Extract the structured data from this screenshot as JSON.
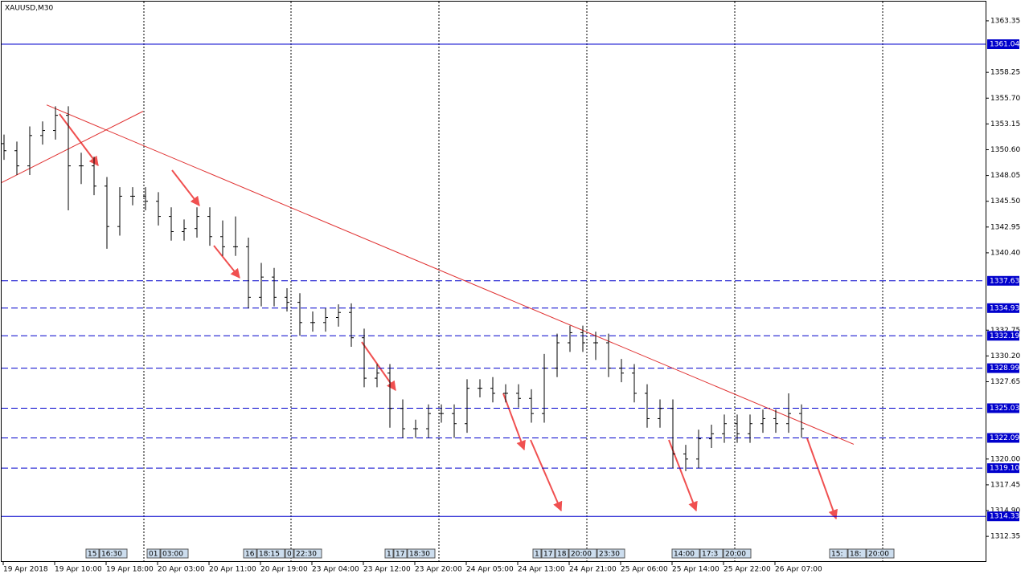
{
  "chart_data": {
    "type": "ohlc",
    "title": "XAUUSD,M30",
    "ylim": [
      1309.82,
      1365.25
    ],
    "yticks": [
      {
        "value": 1363.35,
        "label": "1363.35"
      },
      {
        "value": 1358.25,
        "label": "1358.25"
      },
      {
        "value": 1355.7,
        "label": "1355.70"
      },
      {
        "value": 1353.15,
        "label": "1353.15"
      },
      {
        "value": 1350.6,
        "label": "1350.60"
      },
      {
        "value": 1348.05,
        "label": "1348.05"
      },
      {
        "value": 1345.5,
        "label": "1345.50"
      },
      {
        "value": 1342.95,
        "label": "1342.95"
      },
      {
        "value": 1340.4,
        "label": "1340.40"
      },
      {
        "value": 1332.75,
        "label": "1332.75"
      },
      {
        "value": 1330.2,
        "label": "1330.20"
      },
      {
        "value": 1327.65,
        "label": "1327.65"
      },
      {
        "value": 1320,
        "label": "1320.00"
      },
      {
        "value": 1317.45,
        "label": "1317.45"
      },
      {
        "value": 1314.9,
        "label": "1314.90"
      },
      {
        "value": 1312.35,
        "label": "1312.35"
      }
    ],
    "x_labels": [
      "19 Apr 2018",
      "19 Apr 10:00",
      "19 Apr 18:00",
      "20 Apr 03:00",
      "20 Apr 11:00",
      "20 Apr 19:00",
      "23 Apr 04:00",
      "23 Apr 12:00",
      "23 Apr 20:00",
      "24 Apr 05:00",
      "24 Apr 13:00",
      "24 Apr 21:00",
      "25 Apr 06:00",
      "25 Apr 14:00",
      "25 Apr 22:00",
      "26 Apr 07:00"
    ],
    "color": "#000000",
    "open": [
      1351.2,
      1350.5,
      1349,
      1352,
      1352.5,
      1354,
      1349,
      1349,
      1347,
      1343,
      1346,
      1346,
      1345.5,
      1344,
      1342.5,
      1342.8,
      1344,
      1342,
      1341,
      1341,
      1336,
      1338,
      1336,
      1335.5,
      1333.5,
      1333.5,
      1334,
      1334.5,
      1332,
      1328,
      1328.5,
      1325,
      1323,
      1323,
      1324.5,
      1324.5,
      1323.5,
      1327,
      1327,
      1326.5,
      1326.5,
      1326,
      1324.5,
      1329,
      1331.5,
      1332.5,
      1331.5,
      1331.5,
      1329,
      1328.5,
      1326.5,
      1324,
      1325,
      1320.5,
      1320,
      1322,
      1322.5,
      1323.5,
      1322.5,
      1323.5,
      1324,
      1323.5,
      1324.5
    ],
    "high": [
      1352.1,
      1351.4,
      1352.9,
      1353.4,
      1354.9,
      1354.9,
      1350.3,
      1349.9,
      1347.9,
      1346.9,
      1346.9,
      1346.9,
      1346.4,
      1344.9,
      1343.7,
      1344.9,
      1344.9,
      1343.6,
      1344,
      1341.9,
      1339.4,
      1338.9,
      1336.9,
      1336.4,
      1334.6,
      1334.9,
      1335.3,
      1335.4,
      1332.9,
      1329.4,
      1329.4,
      1325.9,
      1323.9,
      1325.4,
      1325.4,
      1325.4,
      1327.9,
      1327.9,
      1328.1,
      1327.4,
      1327.4,
      1326.9,
      1330.4,
      1332.4,
      1333.2,
      1333.2,
      1332.6,
      1332.4,
      1329.9,
      1329.4,
      1327.4,
      1325.9,
      1325.9,
      1321.4,
      1322.9,
      1323.4,
      1324.4,
      1324.4,
      1324.4,
      1324.9,
      1324.9,
      1326.5,
      1325.4
    ],
    "low": [
      1349.6,
      1348.1,
      1348.1,
      1351.1,
      1351.6,
      1344.6,
      1347.2,
      1346.1,
      1340.8,
      1342.1,
      1345.1,
      1344.6,
      1343.1,
      1341.6,
      1341.6,
      1341.9,
      1341.1,
      1340.1,
      1340.1,
      1334.9,
      1335.1,
      1335.1,
      1334.6,
      1332.2,
      1332.6,
      1332.6,
      1333.1,
      1331.1,
      1327.1,
      1327.1,
      1323.1,
      1322.1,
      1322.1,
      1322.1,
      1323.6,
      1322.1,
      1322.6,
      1326.1,
      1325.6,
      1325.6,
      1325.1,
      1323.6,
      1323.6,
      1328.1,
      1330.6,
      1330.6,
      1329.8,
      1328.1,
      1327.6,
      1325.6,
      1323.1,
      1323.1,
      1319.1,
      1318.8,
      1319.1,
      1321.1,
      1321.6,
      1321.6,
      1321.6,
      1322.6,
      1322.6,
      1322.6,
      1322.1
    ],
    "close": [
      1350.5,
      1349,
      1352,
      1352.5,
      1354,
      1349,
      1349,
      1347,
      1343,
      1346,
      1346,
      1345.5,
      1344,
      1342.5,
      1342.8,
      1344,
      1342,
      1341,
      1341,
      1336,
      1338,
      1336,
      1335.5,
      1333.5,
      1333.5,
      1334,
      1334.5,
      1332,
      1328,
      1328.5,
      1325,
      1323,
      1323,
      1324.5,
      1324.5,
      1323.5,
      1327,
      1327,
      1326.5,
      1326.5,
      1326,
      1324.5,
      1329,
      1331.5,
      1332.5,
      1331.5,
      1331.5,
      1329,
      1328.5,
      1326.5,
      1324,
      1325,
      1320.5,
      1320,
      1322,
      1322.5,
      1323.5,
      1322.5,
      1323.5,
      1324,
      1323.5,
      1324.5,
      1323
    ],
    "levels": [
      {
        "value": 1361.04,
        "label": "1361.04",
        "style": "solid"
      },
      {
        "value": 1337.63,
        "label": "1337.63",
        "style": "dashed"
      },
      {
        "value": 1334.93,
        "label": "1334.93",
        "style": "dashed"
      },
      {
        "value": 1332.19,
        "label": "1332.19",
        "style": "dashed"
      },
      {
        "value": 1328.99,
        "label": "1328.99",
        "style": "dashed"
      },
      {
        "value": 1325.03,
        "label": "1325.03",
        "style": "dashed"
      },
      {
        "value": 1322.09,
        "label": "1322.09",
        "style": "dashed"
      },
      {
        "value": 1319.1,
        "label": "1319.10",
        "style": "dashed"
      },
      {
        "value": 1314.33,
        "label": "1314.33",
        "style": "solid"
      }
    ],
    "level_color": "#0000cc",
    "trendlines": [
      {
        "from": 1355.03,
        "to": 1321.46
      },
      {
        "from": 1347.35,
        "to": 1354.4
      }
    ],
    "trend_color": "#e03030",
    "events": [
      [
        "15",
        "16:30"
      ],
      [
        "01",
        "03:00"
      ],
      [
        "16",
        "18:15",
        "0",
        "22:30"
      ],
      [
        "1",
        "17",
        "18:30"
      ],
      [
        "1",
        "17",
        "18",
        "20:00",
        "23:30"
      ],
      [
        "14:00",
        "17:3",
        "20:00"
      ],
      [
        "15:",
        "18:",
        "20:00"
      ]
    ]
  }
}
